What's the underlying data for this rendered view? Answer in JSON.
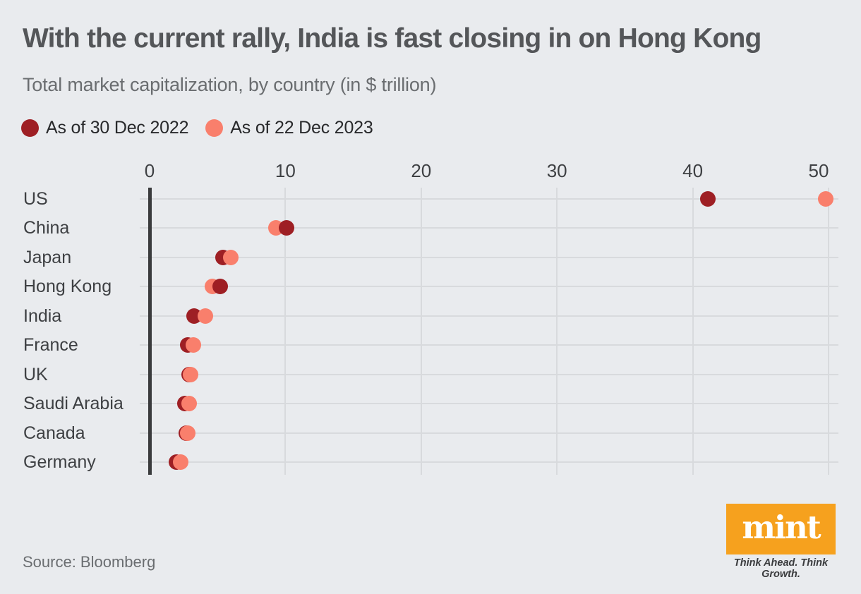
{
  "header": {
    "title": "With the current rally, India is fast closing in on Hong Kong",
    "subtitle": "Total market capitalization, by country (in $ trillion)"
  },
  "legend": [
    {
      "label": "As of 30 Dec 2022",
      "color": "#9E1F24"
    },
    {
      "label": "As of 22 Dec 2023",
      "color": "#F97F6C"
    }
  ],
  "colors": {
    "series_2022": "#9E1F24",
    "series_2023": "#F97F6C",
    "brand_orange": "#F6A11E",
    "background": "#E9EBEE"
  },
  "chart_data": {
    "type": "scatter",
    "variant": "horizontal-dot-plot",
    "title": "With the current rally, India is fast closing in on Hong Kong",
    "subtitle": "Total market capitalization, by country (in $ trillion)",
    "xlabel": "",
    "ylabel": "",
    "xlim": [
      0,
      50
    ],
    "x_ticks": [
      0,
      10,
      20,
      30,
      40,
      50
    ],
    "grid": true,
    "legend_position": "top-left",
    "categories": [
      "US",
      "China",
      "Japan",
      "Hong Kong",
      "India",
      "France",
      "UK",
      "Saudi Arabia",
      "Canada",
      "Germany"
    ],
    "series": [
      {
        "name": "As of 30 Dec 2022",
        "color": "#9E1F24",
        "values": [
          41.1,
          10.1,
          5.4,
          5.2,
          3.3,
          2.8,
          2.9,
          2.6,
          2.7,
          2.0
        ]
      },
      {
        "name": "As of 22 Dec 2023",
        "color": "#F97F6C",
        "values": [
          49.8,
          9.3,
          6.0,
          4.6,
          4.1,
          3.2,
          3.0,
          2.9,
          2.8,
          2.3
        ]
      }
    ]
  },
  "footer": {
    "source": "Source: Bloomberg",
    "logo_text": "mint",
    "tagline": "Think Ahead. Think Growth."
  }
}
